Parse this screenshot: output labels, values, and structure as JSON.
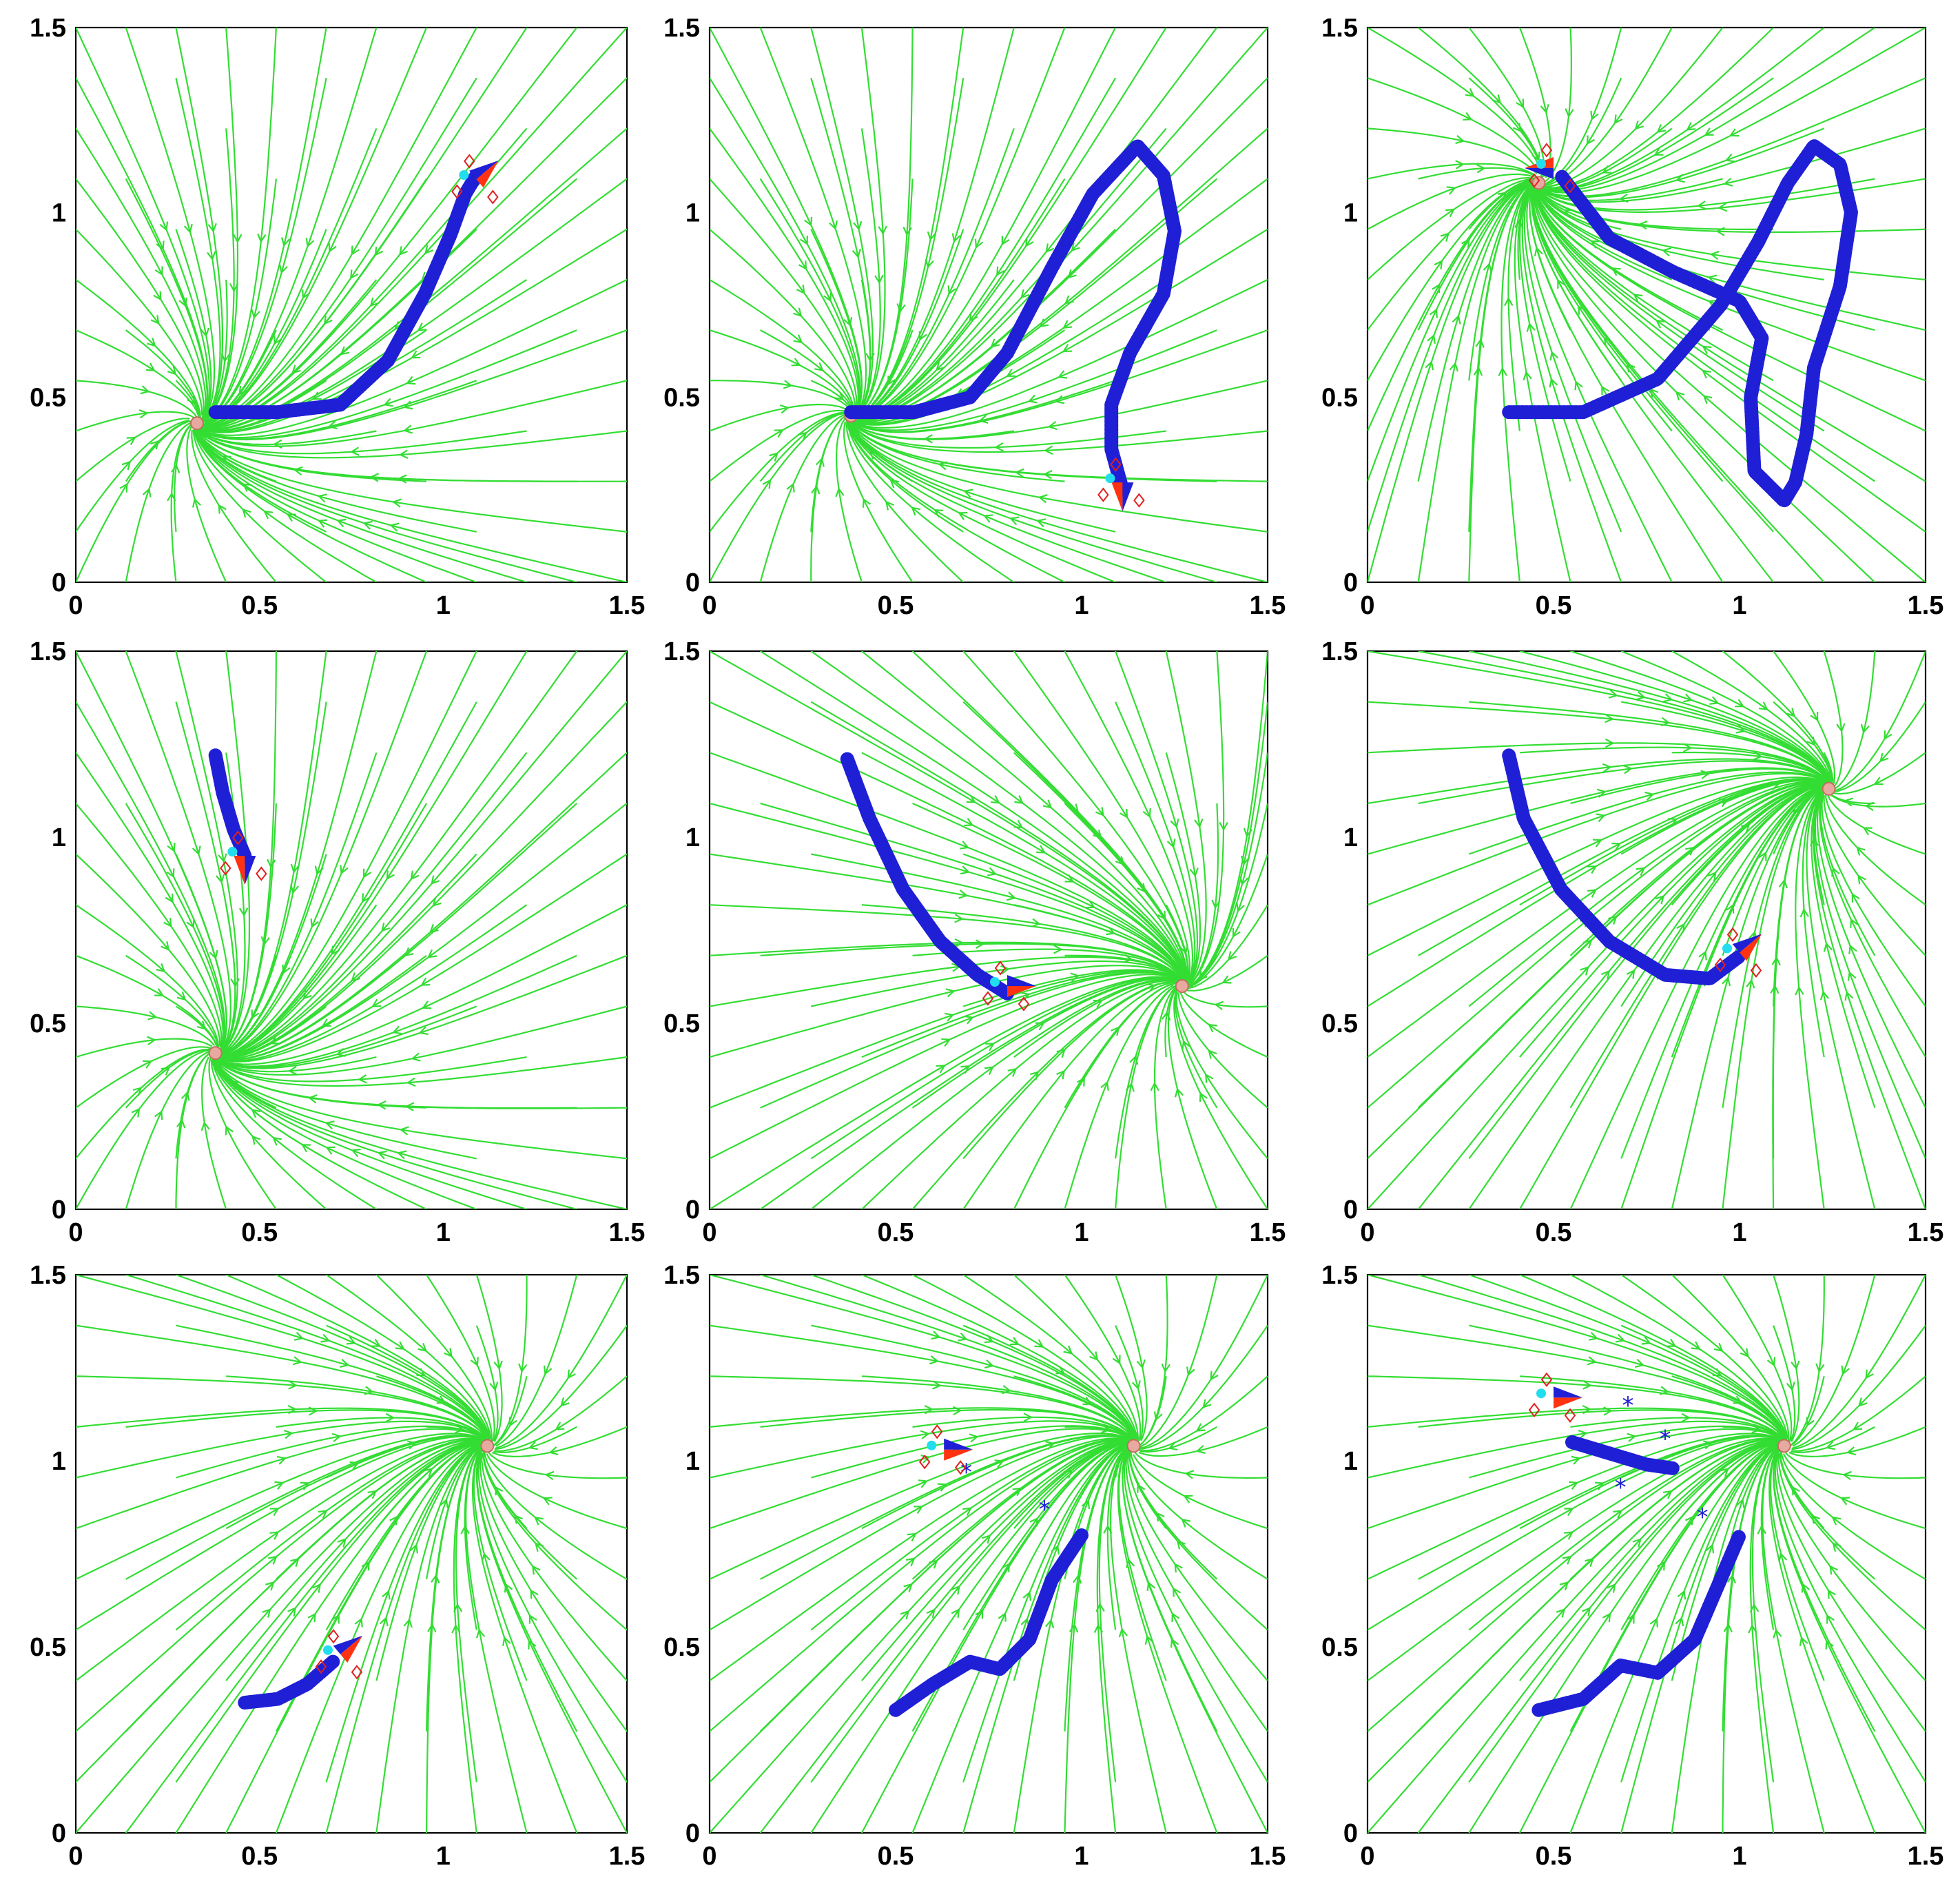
{
  "figure": {
    "layout": "3x3 grid of streamline plots",
    "colors": {
      "streamline": "#33dd33",
      "trajectory": "#1f1fd6",
      "target": "#ff3311",
      "diamond": "#e02020",
      "cyan": "#22ddee",
      "arm": "#141414",
      "skin": "#e8aaa0"
    }
  },
  "chart_data": [
    {
      "type": "line",
      "id": "panel-r1c1",
      "xlim": [
        0,
        1.5
      ],
      "ylim": [
        0,
        1.5
      ],
      "xticks": [
        "0",
        "0.5",
        "1",
        "1.5"
      ],
      "yticks": [
        "0",
        "0.5",
        "1",
        "1.5"
      ],
      "grid": false,
      "series": [
        {
          "points": [
            [
              0.38,
              0.46
            ],
            [
              0.55,
              0.46
            ],
            [
              0.72,
              0.48
            ],
            [
              0.85,
              0.6
            ],
            [
              0.95,
              0.78
            ],
            [
              1.02,
              0.94
            ],
            [
              1.06,
              1.05
            ],
            [
              1.09,
              1.1
            ]
          ]
        }
      ],
      "attractors": [
        [
          0.33,
          0.43
        ]
      ],
      "arrows": [
        {
          "x": 1.09,
          "y": 1.09,
          "dir": "up-right"
        }
      ]
    },
    {
      "type": "line",
      "id": "panel-r1c2",
      "xlim": [
        0,
        1.5
      ],
      "ylim": [
        0,
        1.5
      ],
      "xticks": [
        "0",
        "0.5",
        "1",
        "1.5"
      ],
      "yticks": [
        "0",
        "0.5",
        "1",
        "1.5"
      ],
      "grid": false,
      "series": [
        {
          "points": [
            [
              0.38,
              0.46
            ],
            [
              0.55,
              0.46
            ],
            [
              0.7,
              0.5
            ],
            [
              0.8,
              0.62
            ],
            [
              0.92,
              0.85
            ],
            [
              1.03,
              1.05
            ],
            [
              1.15,
              1.18
            ],
            [
              1.22,
              1.1
            ],
            [
              1.25,
              0.95
            ],
            [
              1.22,
              0.78
            ],
            [
              1.13,
              0.62
            ],
            [
              1.08,
              0.48
            ],
            [
              1.08,
              0.36
            ],
            [
              1.11,
              0.25
            ]
          ]
        }
      ],
      "attractors": [
        [
          0.38,
          0.45
        ]
      ],
      "arrows": [
        {
          "x": 1.11,
          "y": 0.27,
          "dir": "down"
        }
      ]
    },
    {
      "type": "line",
      "id": "panel-r1c3",
      "xlim": [
        0,
        1.5
      ],
      "ylim": [
        0,
        1.5
      ],
      "xticks": [
        "0",
        "0.5",
        "1",
        "1.5"
      ],
      "yticks": [
        "0",
        "0.5",
        "1",
        "1.5"
      ],
      "grid": false,
      "series": [
        {
          "points": [
            [
              0.38,
              0.46
            ],
            [
              0.58,
              0.46
            ],
            [
              0.78,
              0.55
            ],
            [
              0.95,
              0.75
            ],
            [
              1.05,
              0.92
            ],
            [
              1.13,
              1.08
            ],
            [
              1.2,
              1.18
            ],
            [
              1.27,
              1.13
            ],
            [
              1.3,
              1.0
            ],
            [
              1.27,
              0.8
            ],
            [
              1.2,
              0.58
            ],
            [
              1.18,
              0.4
            ],
            [
              1.15,
              0.27
            ],
            [
              1.12,
              0.22
            ],
            [
              1.04,
              0.3
            ],
            [
              1.03,
              0.5
            ],
            [
              1.06,
              0.66
            ],
            [
              1.0,
              0.76
            ],
            [
              0.82,
              0.84
            ],
            [
              0.65,
              0.93
            ],
            [
              0.55,
              1.06
            ],
            [
              0.52,
              1.1
            ]
          ]
        }
      ],
      "attractors": [
        [
          0.46,
          1.08
        ]
      ],
      "arrows": [
        {
          "x": 0.5,
          "y": 1.12,
          "dir": "left"
        }
      ]
    },
    {
      "type": "line",
      "id": "panel-r2c1",
      "xlim": [
        0,
        1.5
      ],
      "ylim": [
        0,
        1.5
      ],
      "xticks": [
        "0",
        "0.5",
        "1",
        "1.5"
      ],
      "yticks": [
        "0",
        "0.5",
        "1",
        "1.5"
      ],
      "grid": false,
      "series": [
        {
          "points": [
            [
              0.38,
              1.22
            ],
            [
              0.4,
              1.12
            ],
            [
              0.43,
              1.02
            ],
            [
              0.46,
              0.95
            ]
          ]
        }
      ],
      "attractors": [
        [
          0.38,
          0.42
        ]
      ],
      "arrows": [
        {
          "x": 0.46,
          "y": 0.95,
          "dir": "down"
        }
      ]
    },
    {
      "type": "line",
      "id": "panel-r2c2",
      "xlim": [
        0,
        1.5
      ],
      "ylim": [
        0,
        1.5
      ],
      "xticks": [
        "0",
        "0.5",
        "1",
        "1.5"
      ],
      "yticks": [
        "0",
        "0.5",
        "1",
        "1.5"
      ],
      "grid": false,
      "series": [
        {
          "points": [
            [
              0.37,
              1.21
            ],
            [
              0.43,
              1.05
            ],
            [
              0.52,
              0.86
            ],
            [
              0.62,
              0.72
            ],
            [
              0.72,
              0.63
            ],
            [
              0.8,
              0.58
            ]
          ]
        }
      ],
      "attractors": [
        [
          1.27,
          0.6
        ]
      ],
      "arrows": [
        {
          "x": 0.8,
          "y": 0.6,
          "dir": "right"
        }
      ]
    },
    {
      "type": "line",
      "id": "panel-r2c3",
      "xlim": [
        0,
        1.5
      ],
      "ylim": [
        0,
        1.5
      ],
      "xticks": [
        "0",
        "0.5",
        "1",
        "1.5"
      ],
      "yticks": [
        "0",
        "0.5",
        "1",
        "1.5"
      ],
      "grid": false,
      "series": [
        {
          "points": [
            [
              0.38,
              1.22
            ],
            [
              0.42,
              1.05
            ],
            [
              0.52,
              0.86
            ],
            [
              0.65,
              0.72
            ],
            [
              0.8,
              0.63
            ],
            [
              0.92,
              0.62
            ],
            [
              1.0,
              0.68
            ]
          ]
        }
      ],
      "attractors": [
        [
          1.24,
          1.13
        ]
      ],
      "arrows": [
        {
          "x": 1.0,
          "y": 0.69,
          "dir": "up-right"
        }
      ]
    },
    {
      "type": "line",
      "id": "panel-r3c1",
      "xlim": [
        0,
        1.5
      ],
      "ylim": [
        0,
        1.5
      ],
      "xticks": [
        "0",
        "0.5",
        "1",
        "1.5"
      ],
      "yticks": [
        "0",
        "0.5",
        "1",
        "1.5"
      ],
      "grid": false,
      "series": [
        {
          "points": [
            [
              0.46,
              0.35
            ],
            [
              0.55,
              0.36
            ],
            [
              0.63,
              0.4
            ],
            [
              0.7,
              0.46
            ]
          ]
        }
      ],
      "attractors": [
        [
          1.12,
          1.04
        ]
      ],
      "arrows": [
        {
          "x": 0.72,
          "y": 0.48,
          "dir": "up-right"
        }
      ]
    },
    {
      "type": "line",
      "id": "panel-r3c2",
      "xlim": [
        0,
        1.5
      ],
      "ylim": [
        0,
        1.5
      ],
      "xticks": [
        "0",
        "0.5",
        "1",
        "1.5"
      ],
      "yticks": [
        "0",
        "0.5",
        "1",
        "1.5"
      ],
      "grid": false,
      "series": [
        {
          "points": [
            [
              0.5,
              0.33
            ],
            [
              0.6,
              0.4
            ],
            [
              0.7,
              0.46
            ],
            [
              0.78,
              0.44
            ],
            [
              0.86,
              0.52
            ],
            [
              0.92,
              0.68
            ],
            [
              1.0,
              0.8
            ]
          ]
        }
      ],
      "scatter": [
        [
          0.69,
          0.97
        ],
        [
          0.9,
          0.87
        ]
      ],
      "attractors": [
        [
          1.14,
          1.04
        ]
      ],
      "arrows": [
        {
          "x": 0.63,
          "y": 1.03,
          "dir": "right"
        }
      ]
    },
    {
      "type": "line",
      "id": "panel-r3c3",
      "xlim": [
        0,
        1.5
      ],
      "ylim": [
        0,
        1.5
      ],
      "xticks": [
        "0",
        "0.5",
        "1",
        "1.5"
      ],
      "yticks": [
        "0",
        "0.5",
        "1",
        "1.5"
      ],
      "grid": false,
      "series": [
        {
          "points": [
            [
              0.46,
              0.33
            ],
            [
              0.58,
              0.36
            ],
            [
              0.68,
              0.45
            ],
            [
              0.78,
              0.43
            ],
            [
              0.88,
              0.52
            ],
            [
              0.94,
              0.66
            ],
            [
              1.0,
              0.8
            ]
          ]
        },
        {
          "points": [
            [
              0.55,
              1.05
            ],
            [
              0.65,
              1.02
            ],
            [
              0.75,
              0.99
            ],
            [
              0.82,
              0.98
            ]
          ]
        }
      ],
      "scatter": [
        [
          0.7,
          1.15
        ],
        [
          0.8,
          1.06
        ],
        [
          0.68,
          0.93
        ],
        [
          0.9,
          0.85
        ]
      ],
      "attractors": [
        [
          1.12,
          1.04
        ]
      ],
      "arrows": [
        {
          "x": 0.5,
          "y": 1.17,
          "dir": "right"
        }
      ]
    }
  ]
}
